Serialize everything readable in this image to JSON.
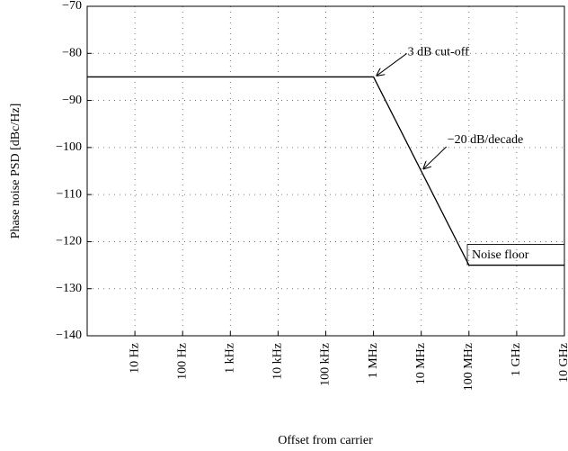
{
  "chart_data": {
    "type": "line",
    "x_label": "Offset from carrier",
    "y_label": "Phase noise PSD [dBc/Hz]",
    "x": [
      1,
      1000000,
      100000000,
      10000000000
    ],
    "series": [
      {
        "color": "#000000",
        "values": [
          -85,
          -85,
          -125,
          -125
        ]
      }
    ],
    "xlim": [
      1,
      10000000000
    ],
    "xscale": "log",
    "xticks": [
      {
        "value": 10,
        "label": "10 Hz"
      },
      {
        "value": 100,
        "label": "100 Hz"
      },
      {
        "value": 1000,
        "label": "1 kHz"
      },
      {
        "value": 10000,
        "label": "10 kHz"
      },
      {
        "value": 100000,
        "label": "100 kHz"
      },
      {
        "value": 1000000,
        "label": "1 MHz"
      },
      {
        "value": 10000000,
        "label": "10 MHz"
      },
      {
        "value": 100000000,
        "label": "100 MHz"
      },
      {
        "value": 1000000000,
        "label": "1 GHz"
      },
      {
        "value": 10000000000,
        "label": "10 GHz"
      }
    ],
    "ylim": [
      -140,
      -70
    ],
    "yticks": [
      {
        "value": -140,
        "label": "−140"
      },
      {
        "value": -130,
        "label": "−130"
      },
      {
        "value": -120,
        "label": "−120"
      },
      {
        "value": -110,
        "label": "−110"
      },
      {
        "value": -100,
        "label": "−100"
      },
      {
        "value": -90,
        "label": "−90"
      },
      {
        "value": -80,
        "label": "−80"
      },
      {
        "value": -70,
        "label": "−70"
      }
    ],
    "grid": true,
    "annotations": [
      {
        "text": "3 dB cut-off"
      },
      {
        "text": "−20 dB/decade"
      },
      {
        "text": "Noise floor"
      }
    ]
  }
}
